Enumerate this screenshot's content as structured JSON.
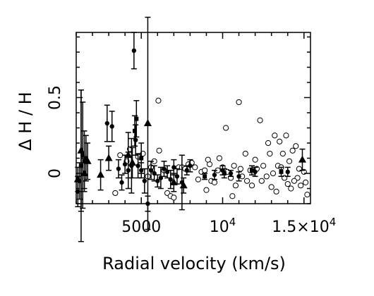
{
  "chart_data": {
    "type": "scatter",
    "title": "",
    "xlabel": "Radial velocity (km/s)",
    "ylabel": "Δ H / H",
    "xlim": [
      1000,
      15400
    ],
    "ylim": [
      -0.2,
      0.93
    ],
    "x_ticks": [
      {
        "value": 5000,
        "label": "5000"
      },
      {
        "value": 10000,
        "label": "10",
        "sup": "4"
      },
      {
        "value": 15000,
        "label": "1.5×10",
        "sup": "4"
      }
    ],
    "y_ticks": [
      {
        "value": 0,
        "label": "0"
      },
      {
        "value": 0.5,
        "label": "0.5"
      }
    ],
    "grid": false,
    "series": [
      {
        "marker": "open-circle",
        "points": [
          [
            3400,
            -0.13
          ],
          [
            3700,
            0.12
          ],
          [
            4100,
            0.08
          ],
          [
            4300,
            0.16
          ],
          [
            4800,
            0.11
          ],
          [
            5100,
            0.13
          ],
          [
            5400,
            -0.02
          ],
          [
            5600,
            0.04
          ],
          [
            5800,
            0.08
          ],
          [
            6050,
            0.48
          ],
          [
            6100,
            0.15
          ],
          [
            6400,
            0.02
          ],
          [
            6600,
            -0.13
          ],
          [
            6800,
            -0.15
          ],
          [
            7000,
            -0.16
          ],
          [
            7300,
            0.04
          ],
          [
            7500,
            0.04
          ],
          [
            7700,
            0.03
          ],
          [
            7900,
            0.06
          ],
          [
            8100,
            0.07
          ],
          [
            8300,
            0.04
          ],
          [
            8500,
            -0.04
          ],
          [
            8700,
            0.01
          ],
          [
            8900,
            0.02
          ],
          [
            9000,
            -0.11
          ],
          [
            9200,
            0.06
          ],
          [
            9300,
            -0.05
          ],
          [
            9500,
            -0.06
          ],
          [
            9700,
            0.02
          ],
          [
            9800,
            0.1
          ],
          [
            10000,
            0.04
          ],
          [
            10200,
            0.3
          ],
          [
            10300,
            0.01
          ],
          [
            10500,
            -0.03
          ],
          [
            10700,
            0.05
          ],
          [
            10800,
            -0.08
          ],
          [
            11000,
            0.47
          ],
          [
            11100,
            0.03
          ],
          [
            11200,
            -0.02
          ],
          [
            11400,
            0.13
          ],
          [
            11500,
            -0.05
          ],
          [
            11700,
            0.02
          ],
          [
            11800,
            -0.08
          ],
          [
            12000,
            0.09
          ],
          [
            12100,
            0.03
          ],
          [
            12300,
            0.35
          ],
          [
            12400,
            -0.05
          ],
          [
            12500,
            0.05
          ],
          [
            12700,
            -0.02
          ],
          [
            12800,
            0.2
          ],
          [
            13000,
            -0.09
          ],
          [
            13100,
            0.0
          ],
          [
            13200,
            0.25
          ],
          [
            13300,
            -0.12
          ],
          [
            13400,
            0.05
          ],
          [
            13600,
            0.04
          ],
          [
            13700,
            0.13
          ],
          [
            13800,
            -0.03
          ],
          [
            13900,
            0.25
          ],
          [
            14000,
            -0.07
          ],
          [
            14100,
            0.08
          ],
          [
            14200,
            -0.1
          ],
          [
            14300,
            0.15
          ],
          [
            14500,
            0.18
          ],
          [
            14600,
            -0.03
          ],
          [
            14700,
            0.03
          ],
          [
            14800,
            -0.08
          ],
          [
            15000,
            0.01
          ],
          [
            15100,
            -0.06
          ],
          [
            15200,
            -0.14
          ],
          [
            12900,
            0.13
          ],
          [
            13500,
            0.21
          ],
          [
            14400,
            -0.05
          ],
          [
            10600,
            -0.15
          ],
          [
            9100,
            0.09
          ]
        ]
      },
      {
        "marker": "filled-circle",
        "points": [
          [
            1100,
            -0.12,
            0.1
          ],
          [
            1200,
            -0.05,
            0.12
          ],
          [
            1300,
            0.05,
            0.5
          ],
          [
            1400,
            0.12,
            0.35
          ],
          [
            1500,
            0.08,
            0.2
          ],
          [
            1600,
            0.1,
            0.15
          ],
          [
            2900,
            0.33,
            0.12
          ],
          [
            3200,
            0.31,
            0.1
          ],
          [
            3600,
            0.03,
            0.06
          ],
          [
            3800,
            -0.06,
            0.05
          ],
          [
            4000,
            0.06,
            0.06
          ],
          [
            4200,
            0.02,
            0.12
          ],
          [
            4400,
            0.05,
            0.18
          ],
          [
            4550,
            0.81,
            0.12
          ],
          [
            4650,
            0.22,
            0.1
          ],
          [
            4800,
            0.05,
            0.08
          ],
          [
            5000,
            0.02,
            0.05
          ],
          [
            5200,
            -0.05,
            0.08
          ],
          [
            5400,
            -0.2,
            0.05
          ],
          [
            5600,
            0.02,
            0.06
          ],
          [
            5800,
            0.0,
            0.05
          ],
          [
            6000,
            -0.05,
            0.04
          ],
          [
            6200,
            -0.03,
            0.07
          ],
          [
            6400,
            0.03,
            0.05
          ],
          [
            6600,
            0.01,
            0.04
          ],
          [
            6800,
            -0.04,
            0.06
          ],
          [
            7000,
            0.04,
            0.05
          ],
          [
            7200,
            -0.02,
            0.05
          ],
          [
            7500,
            -0.06,
            0.18
          ],
          [
            7800,
            0.02,
            0.03
          ],
          [
            8000,
            0.05,
            0.04
          ],
          [
            9500,
            -0.01,
            0.03
          ],
          [
            10000,
            0.02,
            0.03
          ],
          [
            10500,
            0.0,
            0.02
          ],
          [
            11000,
            -0.02,
            0.03
          ],
          [
            12000,
            0.01,
            0.03
          ],
          [
            14000,
            0.01,
            0.03
          ]
        ]
      },
      {
        "marker": "filled-triangle",
        "points": [
          [
            1100,
            -0.04,
            0.08
          ],
          [
            1300,
            0.15,
            0.4
          ],
          [
            1500,
            0.0,
            0.1
          ],
          [
            1700,
            0.08,
            0.12
          ],
          [
            2500,
            -0.01,
            0.1
          ],
          [
            3000,
            0.1,
            0.08
          ],
          [
            4200,
            0.12,
            0.15
          ],
          [
            4450,
            0.07,
            0.1
          ],
          [
            5400,
            0.33,
            0.7
          ],
          [
            7000,
            -0.06,
            0.06
          ],
          [
            7600,
            -0.08,
            0.05
          ],
          [
            14900,
            0.09,
            0.07
          ]
        ]
      },
      {
        "marker": "filled-square",
        "points": [
          [
            4600,
            0.28,
            0.1
          ],
          [
            4700,
            0.36,
            0.12
          ],
          [
            5000,
            0.1,
            0.1
          ],
          [
            8900,
            -0.02,
            0.02
          ],
          [
            10100,
            0.0,
            0.03
          ],
          [
            11800,
            0.02,
            0.03
          ],
          [
            13600,
            0.01,
            0.03
          ]
        ]
      }
    ]
  }
}
